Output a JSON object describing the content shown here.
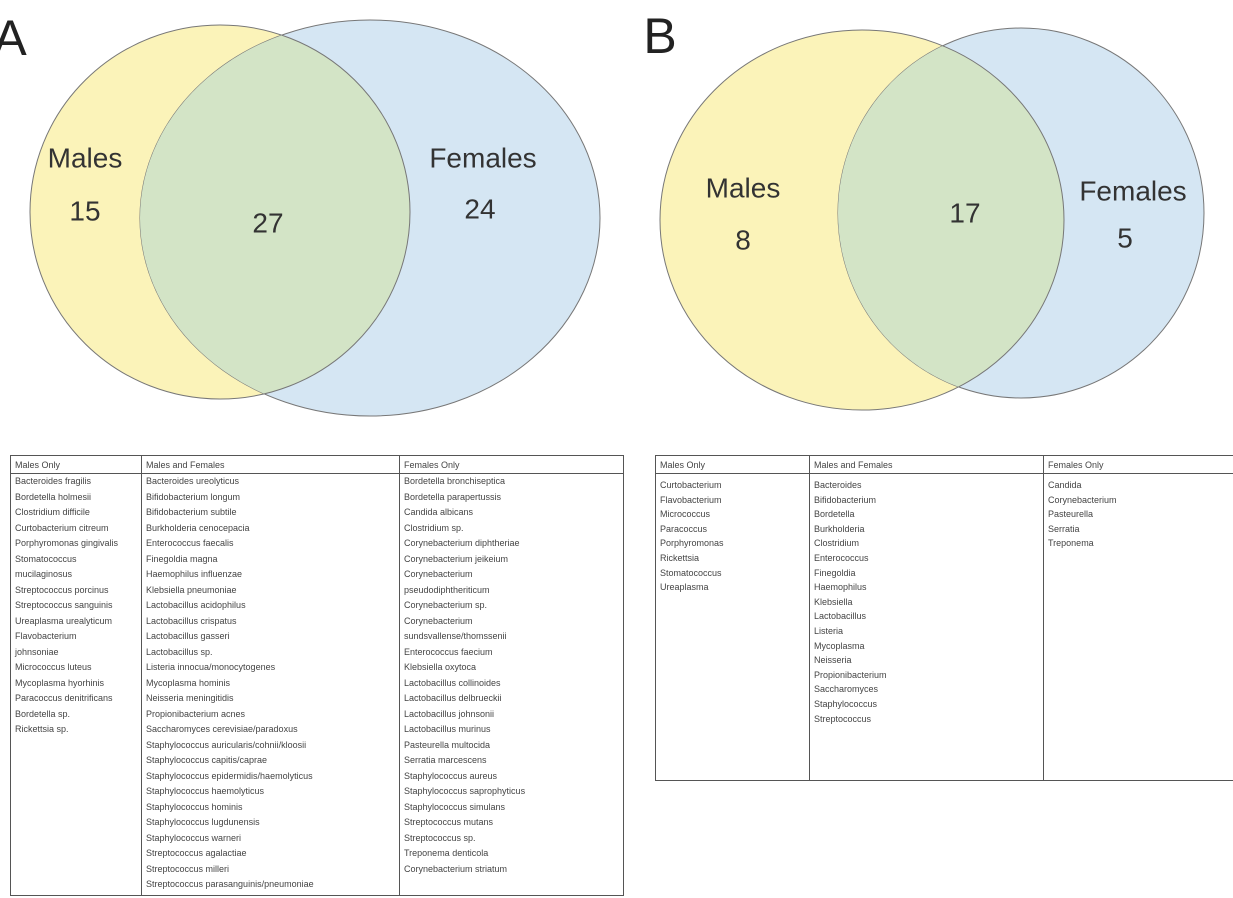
{
  "panels": [
    {
      "label": "A",
      "left": {
        "name": "Males",
        "count": "15"
      },
      "both": {
        "count": "27"
      },
      "right": {
        "name": "Females",
        "count": "24"
      },
      "table": {
        "headers": [
          "Males Only",
          "Males and Females",
          "Females Only"
        ],
        "columns": [
          [
            "Bacteroides fragilis",
            "Bordetella holmesii",
            "Clostridium difficile",
            "Curtobacterium citreum",
            "Porphyromonas gingivalis",
            "Stomatococcus",
            "mucilaginosus",
            "Streptococcus porcinus",
            "Streptococcus sanguinis",
            "Ureaplasma urealyticum",
            "Flavobacterium",
            "johnsoniae",
            "Micrococcus luteus",
            "Mycoplasma hyorhinis",
            "Paracoccus denitrificans",
            "Bordetella sp.",
            "Rickettsia sp."
          ],
          [
            "Bacteroides ureolyticus",
            "Bifidobacterium longum",
            "Bifidobacterium subtile",
            "Burkholderia cenocepacia",
            "Enterococcus faecalis",
            "Finegoldia magna",
            "Haemophilus influenzae",
            "Klebsiella pneumoniae",
            "Lactobacillus acidophilus",
            "Lactobacillus crispatus",
            "Lactobacillus gasseri",
            "Lactobacillus sp.",
            "Listeria innocua/monocytogenes",
            "Mycoplasma hominis",
            "Neisseria meningitidis",
            "Propionibacterium acnes",
            "Saccharomyces cerevisiae/paradoxus",
            "Staphylococcus auricularis/cohnii/kloosii",
            "Staphylococcus capitis/caprae",
            "Staphylococcus epidermidis/haemolyticus",
            "Staphylococcus haemolyticus",
            "Staphylococcus hominis",
            "Staphylococcus lugdunensis",
            "Staphylococcus warneri",
            "Streptococcus agalactiae",
            "Streptococcus milleri",
            "Streptococcus parasanguinis/pneumoniae"
          ],
          [
            "Bordetella bronchiseptica",
            "Bordetella parapertussis",
            "Candida albicans",
            "Clostridium sp.",
            "Corynebacterium diphtheriae",
            "Corynebacterium jeikeium",
            "Corynebacterium",
            "pseudodiphtheriticum",
            "Corynebacterium sp.",
            "Corynebacterium",
            "sundsvallense/thomssenii",
            "Enterococcus faecium",
            "Klebsiella oxytoca",
            "Lactobacillus collinoides",
            "Lactobacillus delbrueckii",
            "Lactobacillus johnsonii",
            "Lactobacillus murinus",
            "Pasteurella multocida",
            "Serratia marcescens",
            "Staphylococcus aureus",
            "Staphylococcus saprophyticus",
            "Staphylococcus simulans",
            "Streptococcus mutans",
            "Streptococcus sp.",
            "Treponema denticola",
            "Corynebacterium striatum"
          ]
        ]
      }
    },
    {
      "label": "B",
      "left": {
        "name": "Males",
        "count": "8"
      },
      "both": {
        "count": "17"
      },
      "right": {
        "name": "Females",
        "count": "5"
      },
      "table": {
        "headers": [
          "Males Only",
          "Males and Females",
          "Females Only"
        ],
        "columns": [
          [
            "Curtobacterium",
            "Flavobacterium",
            "Micrococcus",
            "Paracoccus",
            "Porphyromonas",
            "Rickettsia",
            "Stomatococcus",
            "Ureaplasma"
          ],
          [
            "Bacteroides",
            "Bifidobacterium",
            "Bordetella",
            "Burkholderia",
            "Clostridium",
            "Enterococcus",
            "Finegoldia",
            "Haemophilus",
            "Klebsiella",
            "Lactobacillus",
            "Listeria",
            "Mycoplasma",
            "Neisseria",
            "Propionibacterium",
            "Saccharomyces",
            "Staphylococcus",
            "Streptococcus"
          ],
          [
            "Candida",
            "Corynebacterium",
            "Pasteurella",
            "Serratia",
            "Treponema"
          ]
        ]
      }
    }
  ]
}
